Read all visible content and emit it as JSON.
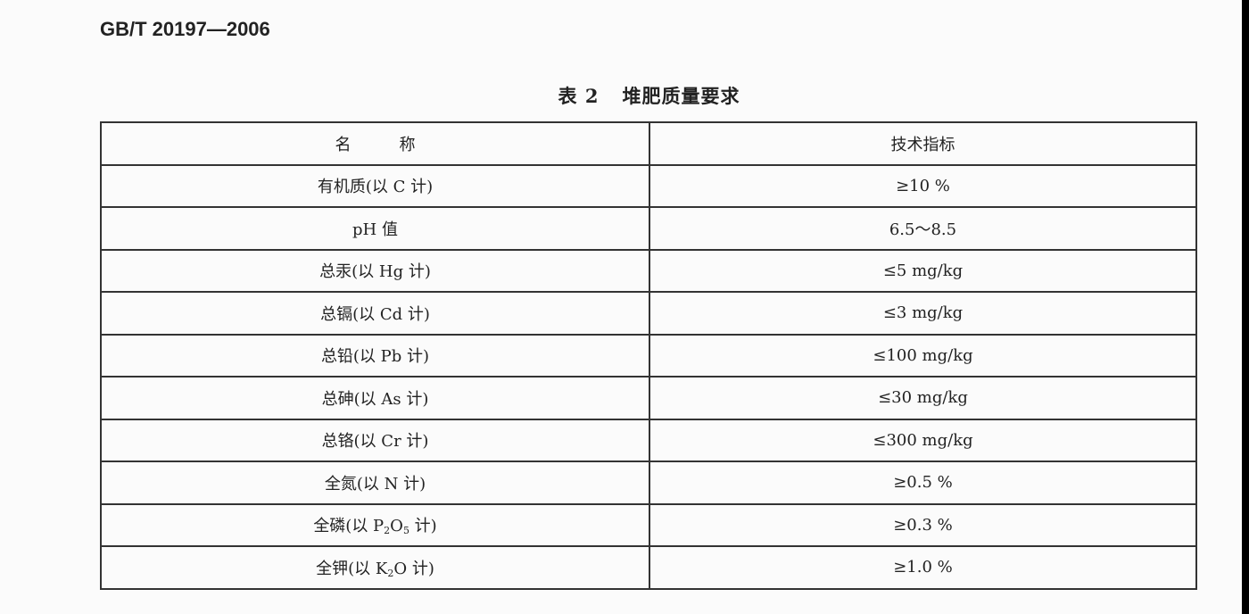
{
  "document": {
    "standard_number": "GB/T 20197—2006",
    "table_number": "表 2",
    "table_title": "堆肥质量要求",
    "columns": [
      "名　　　称",
      "技术指标"
    ],
    "rows": [
      {
        "name": "有机质(以 C 计)",
        "value": "≥10 %"
      },
      {
        "name": "pH 值",
        "value": "6.5～8.5"
      },
      {
        "name": "总汞(以 Hg 计)",
        "value": "≤5 mg/kg"
      },
      {
        "name": "总镉(以 Cd 计)",
        "value": "≤3 mg/kg"
      },
      {
        "name": "总铅(以 Pb 计)",
        "value": "≤100 mg/kg"
      },
      {
        "name": "总砷(以 As 计)",
        "value": "≤30 mg/kg"
      },
      {
        "name": "总铬(以 Cr 计)",
        "value": "≤300 mg/kg"
      },
      {
        "name": "全氮(以 N 计)",
        "value": "≥0.5 %"
      },
      {
        "name_parts": [
          "全磷(以 P",
          "2",
          "O",
          "5",
          " 计)"
        ],
        "value": "≥0.3 %"
      },
      {
        "name_parts": [
          "全钾(以 K",
          "2",
          "O 计)"
        ],
        "value": "≥1.0 %"
      }
    ]
  }
}
